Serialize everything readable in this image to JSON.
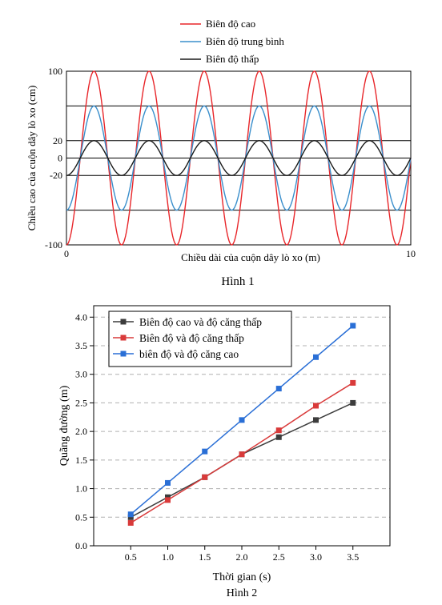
{
  "chart_data": [
    {
      "type": "line",
      "title": "",
      "caption": "Hình 1",
      "xlabel": "Chiều dài của cuộn dây lò xo (m)",
      "ylabel": "Chiều cao của cuộn dây lò xo (cm)",
      "xlim": [
        0,
        10
      ],
      "ylim": [
        -100,
        100
      ],
      "x_ticks": [
        "0",
        "10"
      ],
      "y_ticks": [
        "100",
        "20",
        "0",
        "-20",
        "-100"
      ],
      "reference_lines_y": [
        100,
        60,
        20,
        0,
        -20,
        -60,
        -100
      ],
      "legend_position": "top-center",
      "grid": false,
      "series": [
        {
          "name": "Biên độ cao",
          "color": "#e8262a",
          "amplitude": 100,
          "wavelength": 1.6,
          "phase_x": 0.4,
          "form": "sine"
        },
        {
          "name": "Biên độ trung bình",
          "color": "#3a8fcc",
          "amplitude": 60,
          "wavelength": 1.6,
          "phase_x": 0.4,
          "form": "sine"
        },
        {
          "name": "Biên độ thấp",
          "color": "#1a1a1a",
          "amplitude": 20,
          "wavelength": 1.6,
          "phase_x": 0.4,
          "form": "sine"
        }
      ]
    },
    {
      "type": "line",
      "title": "",
      "caption": "Hình 2",
      "xlabel": "Thời gian (s)",
      "ylabel": "Quãng đường (m)",
      "xlim": [
        0,
        4
      ],
      "ylim": [
        0,
        4.2
      ],
      "x": [
        0.5,
        1.0,
        1.5,
        2.0,
        2.5,
        3.0,
        3.5
      ],
      "x_ticks": [
        "0.5",
        "1.0",
        "1.5",
        "2.0",
        "2.5",
        "3.0",
        "3.5"
      ],
      "y_ticks": [
        "0.0",
        "0.5",
        "1.0",
        "1.5",
        "2.0",
        "2.5",
        "3.0",
        "3.5",
        "4.0"
      ],
      "grid": true,
      "legend_position": "top-left",
      "series": [
        {
          "name": "Biên độ cao và độ căng thấp",
          "color": "#3c3c3c",
          "values": [
            0.5,
            0.85,
            1.2,
            1.6,
            1.9,
            2.2,
            2.5
          ]
        },
        {
          "name": "Biên độ và độ căng thấp",
          "color": "#d93a3a",
          "values": [
            0.4,
            0.8,
            1.2,
            1.6,
            2.02,
            2.45,
            2.85
          ]
        },
        {
          "name": "biên độ và độ căng cao",
          "color": "#2a6fd6",
          "values": [
            0.55,
            1.1,
            1.65,
            2.2,
            2.75,
            3.3,
            3.85
          ]
        }
      ]
    }
  ]
}
